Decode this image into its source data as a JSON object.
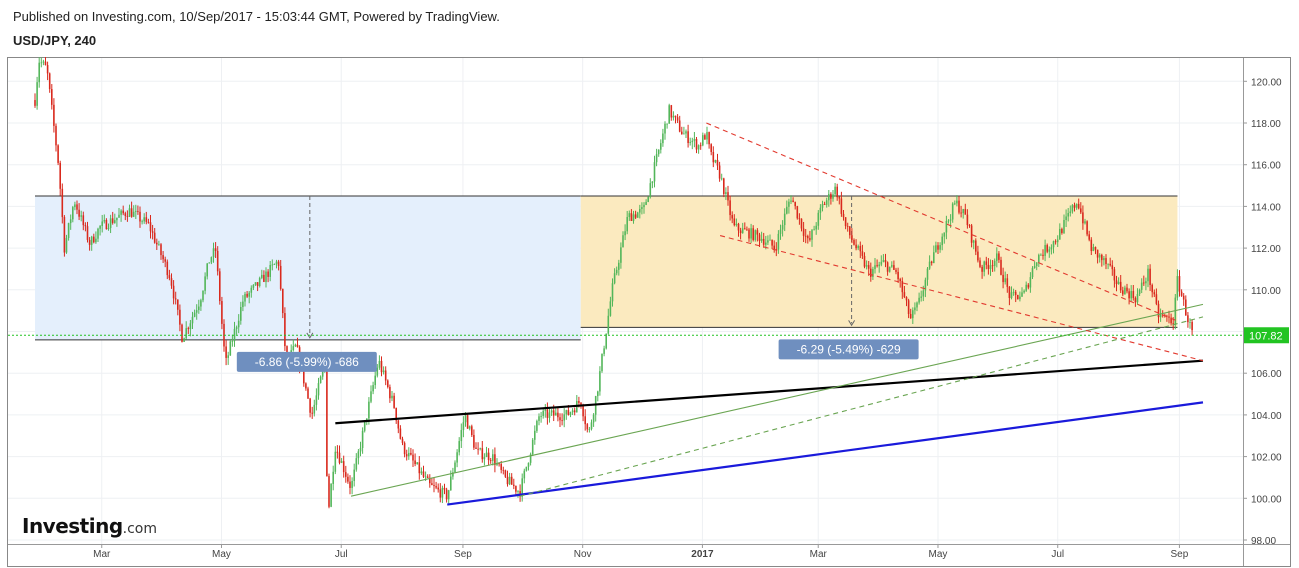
{
  "header": {
    "published": "Published on Investing.com, 10/Sep/2017 - 15:03:44 GMT, Powered by TradingView.",
    "symbol": "USD/JPY, 240"
  },
  "logo": {
    "brand": "Investing",
    "suffix": ".com"
  },
  "colors": {
    "up": "#53b65a",
    "down": "#d9291d",
    "blue_zone": "#e3eefc",
    "yellow_zone": "#fbe9bc",
    "blue_trend": "#1a1adb",
    "black_trend": "#000000",
    "red_dash": "#e23a2f",
    "green_line": "#6aa552",
    "price_badge": "#22c422",
    "label_bg": "#6f8fbf"
  },
  "chart_data": {
    "type": "candlestick",
    "title": "USD/JPY, 240",
    "x_tick_labels": [
      "Mar",
      "May",
      "Jul",
      "Sep",
      "Nov",
      "2017",
      "Mar",
      "May",
      "Jul",
      "Sep"
    ],
    "y_tick_labels": [
      "98.00",
      "100.00",
      "102.00",
      "104.00",
      "106.00",
      "108.00",
      "110.00",
      "112.00",
      "114.00",
      "116.00",
      "118.00",
      "120.00"
    ],
    "ylim": [
      97.7,
      120.6
    ],
    "time_range": [
      "2016-01-27",
      "2017-09-08"
    ],
    "grid": true,
    "last_price": "107.82",
    "price_path": [
      [
        "2016-01-27",
        119.1
      ],
      [
        "2016-01-29",
        121.0
      ],
      [
        "2016-02-02",
        120.6
      ],
      [
        "2016-02-08",
        116.0
      ],
      [
        "2016-02-11",
        112.0
      ],
      [
        "2016-02-16",
        114.3
      ],
      [
        "2016-02-24",
        112.2
      ],
      [
        "2016-02-29",
        113.0
      ],
      [
        "2016-03-15",
        113.8
      ],
      [
        "2016-03-25",
        113.1
      ],
      [
        "2016-04-05",
        110.6
      ],
      [
        "2016-04-11",
        107.7
      ],
      [
        "2016-04-20",
        109.5
      ],
      [
        "2016-04-25",
        111.5
      ],
      [
        "2016-04-28",
        111.9
      ],
      [
        "2016-05-03",
        106.4
      ],
      [
        "2016-05-12",
        109.5
      ],
      [
        "2016-05-20",
        110.3
      ],
      [
        "2016-05-30",
        111.4
      ],
      [
        "2016-06-03",
        106.5
      ],
      [
        "2016-06-08",
        107.3
      ],
      [
        "2016-06-16",
        104.0
      ],
      [
        "2016-06-23",
        106.6
      ],
      [
        "2016-06-24",
        99.0
      ],
      [
        "2016-06-28",
        102.5
      ],
      [
        "2016-07-06",
        100.5
      ],
      [
        "2016-07-20",
        106.6
      ],
      [
        "2016-07-28",
        104.4
      ],
      [
        "2016-08-01",
        102.5
      ],
      [
        "2016-08-15",
        100.6
      ],
      [
        "2016-08-24",
        100.1
      ],
      [
        "2016-09-02",
        104.0
      ],
      [
        "2016-09-08",
        102.2
      ],
      [
        "2016-09-16",
        102.0
      ],
      [
        "2016-09-22",
        101.0
      ],
      [
        "2016-09-30",
        100.3
      ],
      [
        "2016-10-10",
        104.0
      ],
      [
        "2016-10-24",
        104.0
      ],
      [
        "2016-10-31",
        104.7
      ],
      [
        "2016-11-04",
        103.0
      ],
      [
        "2016-11-09",
        105.5
      ],
      [
        "2016-11-16",
        110.0
      ],
      [
        "2016-11-24",
        113.5
      ],
      [
        "2016-12-02",
        113.8
      ],
      [
        "2016-12-15",
        118.6
      ],
      [
        "2016-12-22",
        117.5
      ],
      [
        "2016-12-30",
        116.9
      ],
      [
        "2017-01-03",
        117.5
      ],
      [
        "2017-01-05",
        116.5
      ],
      [
        "2017-01-10",
        115.5
      ],
      [
        "2017-01-17",
        113.0
      ],
      [
        "2017-01-31",
        112.5
      ],
      [
        "2017-02-07",
        112.0
      ],
      [
        "2017-02-15",
        114.5
      ],
      [
        "2017-02-24",
        112.2
      ],
      [
        "2017-03-03",
        114.0
      ],
      [
        "2017-03-10",
        114.9
      ],
      [
        "2017-03-15",
        113.0
      ],
      [
        "2017-03-27",
        110.8
      ],
      [
        "2017-04-03",
        111.3
      ],
      [
        "2017-04-10",
        110.8
      ],
      [
        "2017-04-17",
        108.6
      ],
      [
        "2017-04-21",
        109.3
      ],
      [
        "2017-04-28",
        111.5
      ],
      [
        "2017-05-10",
        114.2
      ],
      [
        "2017-05-15",
        113.5
      ],
      [
        "2017-05-23",
        111.0
      ],
      [
        "2017-05-31",
        111.5
      ],
      [
        "2017-06-07",
        109.6
      ],
      [
        "2017-06-14",
        109.8
      ],
      [
        "2017-06-20",
        111.5
      ],
      [
        "2017-06-30",
        112.4
      ],
      [
        "2017-07-11",
        114.3
      ],
      [
        "2017-07-18",
        112.0
      ],
      [
        "2017-07-26",
        111.2
      ],
      [
        "2017-08-01",
        110.2
      ],
      [
        "2017-08-10",
        109.6
      ],
      [
        "2017-08-16",
        110.8
      ],
      [
        "2017-08-21",
        108.8
      ],
      [
        "2017-08-29",
        108.5
      ],
      [
        "2017-08-31",
        110.5
      ],
      [
        "2017-09-05",
        108.7
      ],
      [
        "2017-09-08",
        107.8
      ]
    ],
    "zones": [
      {
        "from": "2016-01-27",
        "to": "2016-10-31",
        "top": 114.5,
        "bottom": 107.6,
        "color": "blue"
      },
      {
        "from": "2016-10-31",
        "to": "2017-08-31",
        "top": 114.5,
        "bottom": 108.2,
        "color": "yellow"
      }
    ],
    "measures": [
      {
        "label": "-6.86 (-5.99%) -686",
        "x": "2016-06-15",
        "from": 114.5,
        "to": 107.6
      },
      {
        "label": "-6.29 (-5.49%) -629",
        "x": "2017-03-18",
        "from": 114.5,
        "to": 108.2
      }
    ],
    "trendlines": [
      {
        "name": "blue-trendline",
        "from": [
          "2016-08-24",
          99.7
        ],
        "to": [
          "2017-09-13",
          104.6
        ],
        "color": "blue",
        "style": "solid"
      },
      {
        "name": "black-trendline",
        "from": [
          "2016-06-28",
          103.6
        ],
        "to": [
          "2017-09-13",
          106.6
        ],
        "color": "black",
        "style": "solid"
      },
      {
        "name": "green-solid-line",
        "from": [
          "2016-07-06",
          100.1
        ],
        "to": [
          "2017-09-13",
          109.3
        ],
        "color": "green",
        "style": "solid"
      },
      {
        "name": "green-dashed-line",
        "from": [
          "2016-09-30",
          100.1
        ],
        "to": [
          "2017-09-13",
          108.7
        ],
        "color": "green",
        "style": "dashed"
      },
      {
        "name": "red-dashed-upper",
        "from": [
          "2017-01-03",
          118.0
        ],
        "to": [
          "2017-08-31",
          108.5
        ],
        "color": "red",
        "style": "dashed"
      },
      {
        "name": "red-dashed-lower",
        "from": [
          "2017-01-10",
          112.6
        ],
        "to": [
          "2017-09-13",
          106.6
        ],
        "color": "red",
        "style": "dashed"
      }
    ]
  }
}
